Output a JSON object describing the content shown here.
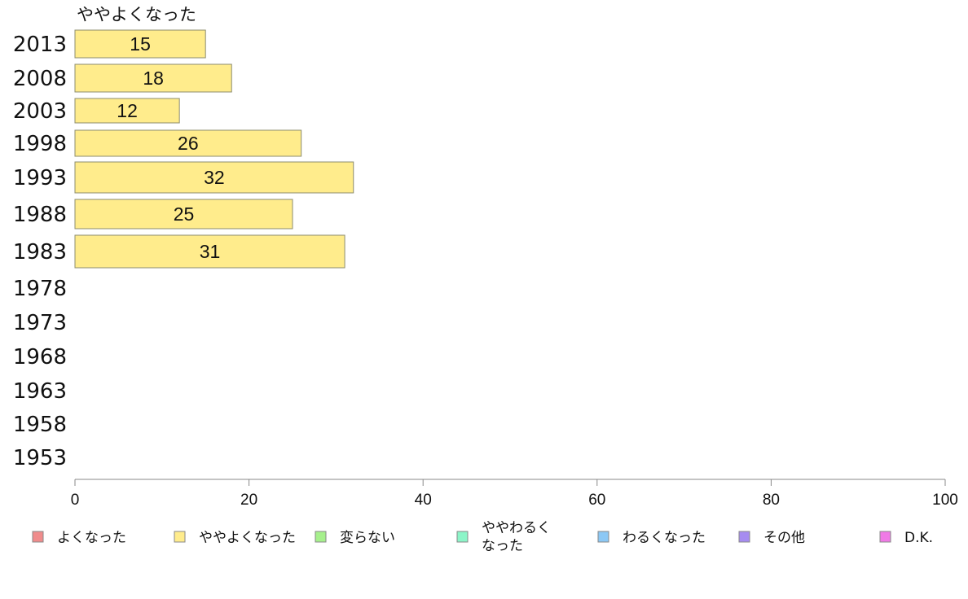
{
  "chart_data": {
    "type": "bar",
    "orientation": "horizontal",
    "title": "ややよくなった",
    "categories": [
      "2013",
      "2008",
      "2003",
      "1998",
      "1993",
      "1988",
      "1983",
      "1978",
      "1973",
      "1968",
      "1963",
      "1958",
      "1953"
    ],
    "series": [
      {
        "name": "ややよくなった",
        "values": [
          15,
          18,
          12,
          26,
          32,
          25,
          31,
          null,
          null,
          null,
          null,
          null,
          null
        ]
      }
    ],
    "xlim": [
      0,
      100
    ],
    "xticks": [
      0,
      20,
      40,
      60,
      80,
      100
    ],
    "grid": false,
    "legend": {
      "position": "bottom",
      "entries": [
        {
          "label": "よくなった",
          "color": "#f08c8c"
        },
        {
          "label": "ややよくなった",
          "color": "#ffec8c"
        },
        {
          "label": "変らない",
          "color": "#a6f08c"
        },
        {
          "label": "ややわるく\nなった",
          "color": "#8cf5c8"
        },
        {
          "label": "わるくなった",
          "color": "#8cc8f5"
        },
        {
          "label": "その他",
          "color": "#a68cf0"
        },
        {
          "label": "D.K.",
          "color": "#f07ae6"
        }
      ]
    },
    "bar_color": "#ffec8c",
    "bar_stroke": "#8c8c6e"
  }
}
